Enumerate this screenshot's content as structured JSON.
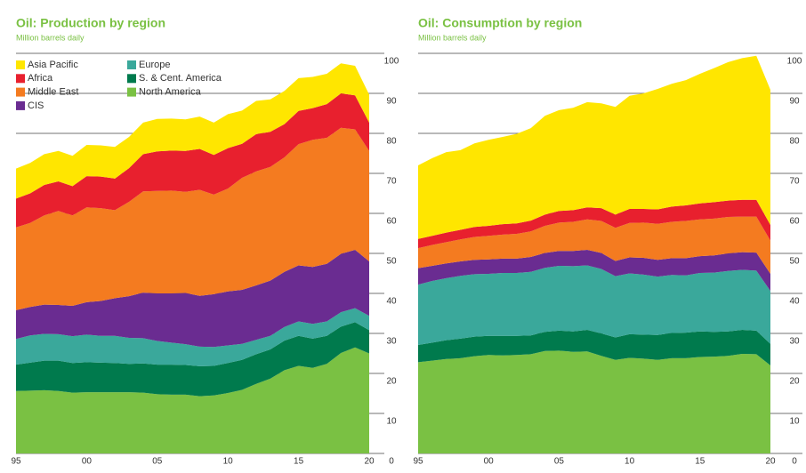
{
  "chart_data": [
    {
      "type": "stacked_area",
      "title": "Oil: Production by region",
      "subtitle": "Million barrels daily",
      "x": [
        1995,
        1996,
        1997,
        1998,
        1999,
        2000,
        2001,
        2002,
        2003,
        2004,
        2005,
        2006,
        2007,
        2008,
        2009,
        2010,
        2011,
        2012,
        2013,
        2014,
        2015,
        2016,
        2017,
        2018,
        2019,
        2020
      ],
      "xlim": [
        1995,
        2020
      ],
      "xticks": [
        {
          "value": 1995,
          "label": "95"
        },
        {
          "value": 2000,
          "label": "00"
        },
        {
          "value": 2005,
          "label": "05"
        },
        {
          "value": 2010,
          "label": "10"
        },
        {
          "value": 2015,
          "label": "15"
        },
        {
          "value": 2020,
          "label": "20"
        }
      ],
      "ylim": [
        0,
        100
      ],
      "yticks": [
        0,
        10,
        20,
        30,
        40,
        50,
        60,
        70,
        80,
        90,
        100
      ],
      "grid": true,
      "legend": "top-left",
      "series": [
        {
          "name": "North America",
          "color": "#7ac143",
          "values": [
            15.6,
            15.7,
            15.8,
            15.6,
            15.2,
            15.3,
            15.3,
            15.3,
            15.3,
            15.2,
            14.8,
            14.7,
            14.7,
            14.3,
            14.5,
            15.1,
            15.9,
            17.4,
            18.7,
            20.8,
            21.9,
            21.4,
            22.4,
            25.1,
            26.5,
            25.0
          ]
        },
        {
          "name": "S. & Cent. America",
          "color": "#007a4d",
          "values": [
            6.6,
            7.0,
            7.4,
            7.6,
            7.4,
            7.5,
            7.4,
            7.3,
            7.1,
            7.3,
            7.4,
            7.5,
            7.4,
            7.5,
            7.4,
            7.5,
            7.5,
            7.4,
            7.3,
            7.4,
            7.5,
            7.3,
            7.0,
            6.6,
            6.3,
            5.8
          ]
        },
        {
          "name": "Europe",
          "color": "#3aa89b",
          "values": [
            6.4,
            6.8,
            6.7,
            6.6,
            6.7,
            6.9,
            6.7,
            6.8,
            6.5,
            6.3,
            5.9,
            5.5,
            5.2,
            4.9,
            4.7,
            4.4,
            4.0,
            3.6,
            3.4,
            3.4,
            3.6,
            3.7,
            3.6,
            3.6,
            3.5,
            3.6
          ]
        },
        {
          "name": "CIS",
          "color": "#6a2c91",
          "values": [
            7.2,
            7.1,
            7.3,
            7.3,
            7.6,
            8.1,
            8.7,
            9.4,
            10.4,
            11.4,
            11.9,
            12.3,
            12.8,
            12.7,
            13.2,
            13.5,
            13.5,
            13.6,
            13.8,
            13.8,
            14.0,
            14.2,
            14.4,
            14.6,
            14.6,
            13.6
          ]
        },
        {
          "name": "Middle East",
          "color": "#f47b20",
          "values": [
            20.7,
            21.0,
            22.3,
            23.5,
            22.6,
            23.7,
            23.2,
            22.0,
            23.6,
            25.3,
            25.6,
            25.7,
            25.3,
            26.5,
            24.9,
            25.7,
            28.0,
            28.5,
            28.4,
            28.6,
            30.3,
            31.8,
            31.5,
            31.5,
            30.1,
            27.6
          ]
        },
        {
          "name": "Africa",
          "color": "#e8202e",
          "values": [
            7.2,
            7.4,
            7.6,
            7.4,
            7.3,
            7.8,
            7.9,
            7.9,
            8.4,
            9.3,
            9.9,
            10.0,
            10.2,
            10.2,
            9.9,
            10.1,
            8.5,
            9.3,
            8.8,
            8.3,
            8.3,
            7.9,
            8.4,
            8.6,
            8.5,
            7.1
          ]
        },
        {
          "name": "Asia Pacific",
          "color": "#ffe600",
          "values": [
            7.5,
            7.6,
            7.7,
            7.6,
            7.6,
            7.8,
            7.8,
            7.9,
            7.8,
            7.9,
            8.1,
            8.0,
            7.9,
            8.1,
            8.1,
            8.5,
            8.3,
            8.3,
            8.1,
            8.3,
            8.2,
            7.8,
            7.6,
            7.5,
            7.4,
            7.0
          ]
        }
      ]
    },
    {
      "type": "stacked_area",
      "title": "Oil: Consumption by region",
      "subtitle": "Million barrels daily",
      "x": [
        1995,
        1996,
        1997,
        1998,
        1999,
        2000,
        2001,
        2002,
        2003,
        2004,
        2005,
        2006,
        2007,
        2008,
        2009,
        2010,
        2011,
        2012,
        2013,
        2014,
        2015,
        2016,
        2017,
        2018,
        2019,
        2020
      ],
      "xlim": [
        1995,
        2020
      ],
      "xticks": [
        {
          "value": 1995,
          "label": "95"
        },
        {
          "value": 2000,
          "label": "00"
        },
        {
          "value": 2005,
          "label": "05"
        },
        {
          "value": 2010,
          "label": "10"
        },
        {
          "value": 2015,
          "label": "15"
        },
        {
          "value": 2020,
          "label": "20"
        }
      ],
      "ylim": [
        0,
        100
      ],
      "yticks": [
        0,
        10,
        20,
        30,
        40,
        50,
        60,
        70,
        80,
        90,
        100
      ],
      "grid": true,
      "series": [
        {
          "color": "#7ac143",
          "values": [
            22.8,
            23.2,
            23.6,
            23.8,
            24.3,
            24.6,
            24.5,
            24.6,
            24.8,
            25.6,
            25.7,
            25.4,
            25.5,
            24.4,
            23.4,
            23.9,
            23.7,
            23.4,
            23.8,
            23.8,
            24.1,
            24.2,
            24.4,
            24.9,
            24.8,
            22.0
          ]
        },
        {
          "color": "#007a4d",
          "values": [
            4.3,
            4.5,
            4.7,
            4.9,
            4.9,
            4.8,
            4.9,
            4.8,
            4.7,
            4.8,
            5.0,
            5.1,
            5.4,
            5.6,
            5.6,
            5.9,
            6.0,
            6.2,
            6.3,
            6.4,
            6.4,
            6.2,
            6.1,
            6.0,
            5.9,
            5.4
          ]
        },
        {
          "color": "#3aa89b",
          "values": [
            15.1,
            15.4,
            15.5,
            15.7,
            15.6,
            15.5,
            15.7,
            15.7,
            15.9,
            16.0,
            16.2,
            16.3,
            16.1,
            16.1,
            15.3,
            15.2,
            15.0,
            14.6,
            14.5,
            14.3,
            14.6,
            14.8,
            15.1,
            15.0,
            15.0,
            13.2
          ]
        },
        {
          "color": "#6a2c91",
          "values": [
            4.1,
            3.8,
            3.7,
            3.6,
            3.6,
            3.6,
            3.6,
            3.6,
            3.7,
            3.7,
            3.7,
            3.8,
            3.9,
            4.0,
            3.8,
            4.0,
            4.2,
            4.2,
            4.2,
            4.3,
            4.2,
            4.3,
            4.4,
            4.4,
            4.5,
            4.3
          ]
        },
        {
          "color": "#f47b20",
          "values": [
            5.0,
            5.2,
            5.3,
            5.5,
            5.7,
            5.9,
            6.0,
            6.2,
            6.4,
            6.8,
            7.1,
            7.3,
            7.6,
            8.0,
            8.3,
            8.6,
            8.8,
            9.0,
            9.1,
            9.3,
            9.2,
            9.2,
            9.1,
            8.9,
            9.0,
            8.3
          ]
        },
        {
          "color": "#e8202e",
          "values": [
            2.3,
            2.3,
            2.4,
            2.4,
            2.5,
            2.5,
            2.6,
            2.6,
            2.7,
            2.8,
            2.9,
            2.9,
            3.0,
            3.2,
            3.3,
            3.5,
            3.4,
            3.6,
            3.8,
            3.9,
            4.0,
            4.1,
            4.1,
            4.2,
            4.2,
            3.9
          ]
        },
        {
          "color": "#ffe600",
          "values": [
            18.4,
            19.4,
            20.1,
            19.9,
            20.9,
            21.5,
            21.8,
            22.4,
            23.1,
            24.7,
            25.2,
            25.6,
            26.3,
            26.2,
            26.9,
            28.3,
            28.9,
            30.1,
            30.7,
            31.3,
            32.4,
            33.5,
            34.6,
            35.4,
            36.0,
            33.8
          ]
        }
      ]
    }
  ]
}
